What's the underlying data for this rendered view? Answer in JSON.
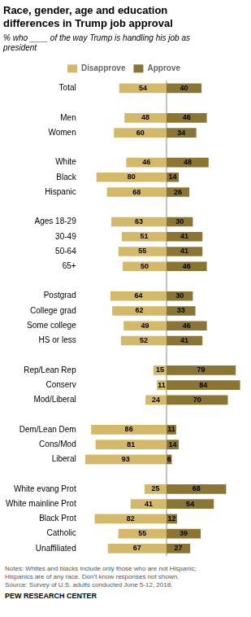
{
  "chart_data": {
    "type": "bar",
    "orientation": "horizontal",
    "title": "Race, gender, age and education\ndifferences in Trump job approval",
    "subtitle": "% who ____ of the way Trump is handling his job as\npresident",
    "notes": "Notes: Whites and blacks include only those who are not Hispanic;\nHispanics are of any race. Don’t know responses not shown.\nSource: Survey of U.S. adults conducted June 5-12, 2018.",
    "source": "PEW RESEARCH CENTER",
    "categories": [
      "Total",
      null,
      "Men",
      "Women",
      null,
      "White",
      "Black",
      "Hispanic",
      null,
      "Ages 18-29",
      "30-49",
      "50-64",
      "65+",
      null,
      "Postgrad",
      "College grad",
      "Some college",
      "HS or less",
      null,
      "Rep/Lean Rep",
      "Conserv",
      "Mod/Liberal",
      null,
      "Dem/Lean Dem",
      "Cons/Mod",
      "Liberal",
      null,
      "White evang Prot",
      "White mainline Prot",
      "Black Prot",
      "Catholic",
      "Unaffiliated"
    ],
    "series": [
      {
        "name": "Disapprove",
        "color": "#D4B96A",
        "values": [
          54,
          null,
          48,
          60,
          null,
          46,
          80,
          68,
          null,
          63,
          51,
          55,
          50,
          null,
          64,
          62,
          49,
          52,
          null,
          15,
          11,
          24,
          null,
          86,
          81,
          93,
          null,
          25,
          41,
          82,
          55,
          67
        ]
      },
      {
        "name": "Approve",
        "color": "#8B7535",
        "axis": "x2",
        "values": [
          40,
          null,
          46,
          34,
          null,
          48,
          14,
          26,
          null,
          30,
          41,
          41,
          46,
          null,
          30,
          33,
          46,
          41,
          null,
          79,
          84,
          70,
          null,
          11,
          14,
          6,
          null,
          68,
          54,
          12,
          39,
          27
        ]
      }
    ],
    "xlim": [
      0,
      93
    ],
    "x2lim": [
      0,
      89
    ],
    "grid": false,
    "legend": "top",
    "data_labels": true,
    "tick_labels": "y"
  }
}
